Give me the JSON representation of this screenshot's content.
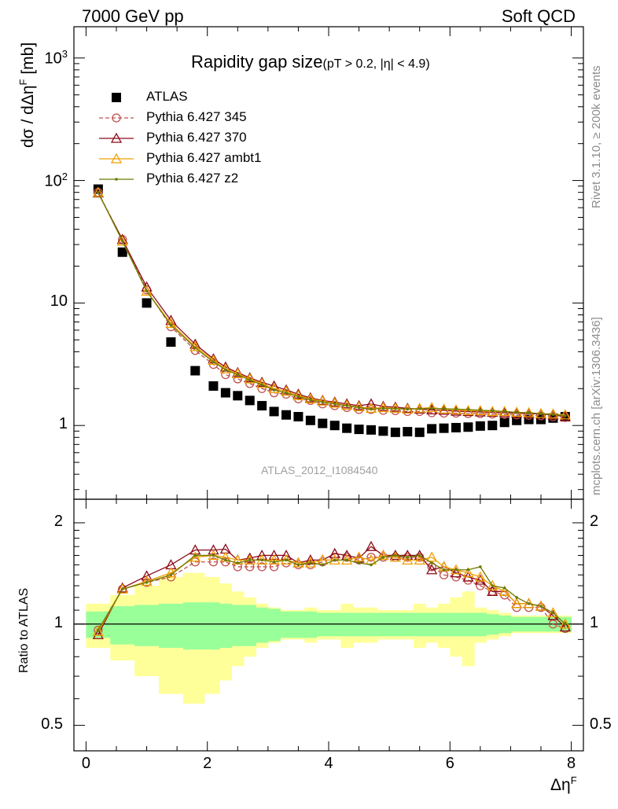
{
  "header": {
    "left": "7000 GeV pp",
    "right": "Soft QCD"
  },
  "side": {
    "rivet": "Rivet 3.1.10, ≥ 200k events",
    "mcplots": "mcplots.cern.ch [arXiv:1306.3436]"
  },
  "main": {
    "title": "Rapidity gap size",
    "title_sub": "(pT > 0.2, |η| < 4.9)",
    "ylabel": "dσ / dΔη",
    "ylabel_sup": "F",
    "ylabel_unit": " [mb]",
    "watermark": "ATLAS_2012_I1084540",
    "yticks": [
      {
        "value": 1000,
        "base": "10",
        "exp": "3"
      },
      {
        "value": 100,
        "base": "10",
        "exp": "2"
      },
      {
        "value": 10,
        "base": "10",
        "exp": ""
      },
      {
        "value": 1,
        "base": "1",
        "exp": ""
      }
    ]
  },
  "ratio": {
    "ylabel": "Ratio to ATLAS",
    "yticks": [
      {
        "value": 2,
        "label": "2"
      },
      {
        "value": 1,
        "label": "1"
      },
      {
        "value": 0.5,
        "label": "0.5"
      }
    ]
  },
  "xaxis": {
    "label": "Δη",
    "label_sup": "F",
    "ticks": [
      {
        "value": 0,
        "label": "0"
      },
      {
        "value": 2,
        "label": "2"
      },
      {
        "value": 4,
        "label": "4"
      },
      {
        "value": 6,
        "label": "6"
      },
      {
        "value": 8,
        "label": "8"
      }
    ]
  },
  "legend": [
    {
      "label": "ATLAS",
      "color": "#000000",
      "marker": "square",
      "dash": false
    },
    {
      "label": "Pythia 6.427 345",
      "color": "#c0504d",
      "marker": "circle",
      "dash": true
    },
    {
      "label": "Pythia 6.427 370",
      "color": "#8b0a1a",
      "marker": "triangle",
      "dash": false
    },
    {
      "label": "Pythia 6.427 ambt1",
      "color": "#f0a000",
      "marker": "triangle",
      "dash": false
    },
    {
      "label": "Pythia 6.427 z2",
      "color": "#6b7a00",
      "marker": "dot",
      "dash": false
    }
  ],
  "chart_data": {
    "type": "line",
    "x": [
      0.2,
      0.6,
      1.0,
      1.4,
      1.8,
      2.1,
      2.3,
      2.5,
      2.7,
      2.9,
      3.1,
      3.3,
      3.5,
      3.7,
      3.9,
      4.1,
      4.3,
      4.5,
      4.7,
      4.9,
      5.1,
      5.3,
      5.5,
      5.7,
      5.9,
      6.1,
      6.3,
      6.5,
      6.7,
      6.9,
      7.1,
      7.3,
      7.5,
      7.7,
      7.9
    ],
    "xlim": [
      -0.2,
      8.2
    ],
    "ylim_main": [
      0.25,
      1800
    ],
    "yscale_main": "log",
    "ylim_ratio": [
      0.42,
      2.35
    ],
    "yscale_ratio": "log",
    "series": [
      {
        "name": "ATLAS",
        "values": [
          85,
          26,
          10,
          4.8,
          2.8,
          2.1,
          1.85,
          1.75,
          1.6,
          1.45,
          1.3,
          1.22,
          1.18,
          1.1,
          1.04,
          1.0,
          0.95,
          0.93,
          0.92,
          0.9,
          0.88,
          0.89,
          0.88,
          0.94,
          0.95,
          0.96,
          0.97,
          0.99,
          1.0,
          1.06,
          1.1,
          1.12,
          1.12,
          1.15,
          1.18
        ]
      },
      {
        "name": "Pythia 6.427 345",
        "values": [
          80,
          33,
          12.8,
          6.4,
          4.1,
          3.15,
          2.6,
          2.4,
          2.2,
          2.0,
          1.85,
          1.8,
          1.65,
          1.6,
          1.5,
          1.45,
          1.4,
          1.35,
          1.35,
          1.33,
          1.32,
          1.3,
          1.3,
          1.27,
          1.26,
          1.26,
          1.25,
          1.25,
          1.24,
          1.23,
          1.22,
          1.21,
          1.2,
          1.18,
          1.16
        ]
      },
      {
        "name": "Pythia 6.427 370",
        "values": [
          79,
          33,
          13.5,
          7.2,
          4.6,
          3.5,
          3.0,
          2.7,
          2.45,
          2.25,
          2.1,
          1.95,
          1.8,
          1.68,
          1.6,
          1.55,
          1.5,
          1.45,
          1.5,
          1.43,
          1.41,
          1.38,
          1.36,
          1.34,
          1.33,
          1.31,
          1.3,
          1.29,
          1.28,
          1.27,
          1.26,
          1.25,
          1.24,
          1.22,
          1.18
        ]
      },
      {
        "name": "Pythia 6.427 ambt1",
        "values": [
          80,
          32,
          12.5,
          6.8,
          4.4,
          3.4,
          2.9,
          2.65,
          2.4,
          2.2,
          2.0,
          1.9,
          1.75,
          1.65,
          1.58,
          1.52,
          1.46,
          1.42,
          1.38,
          1.4,
          1.38,
          1.36,
          1.38,
          1.4,
          1.36,
          1.34,
          1.32,
          1.32,
          1.3,
          1.3,
          1.28,
          1.27,
          1.25,
          1.24,
          1.22
        ]
      },
      {
        "name": "Pythia 6.427 z2",
        "values": [
          80,
          32,
          12.5,
          6.6,
          4.3,
          3.3,
          2.85,
          2.6,
          2.35,
          2.15,
          1.95,
          1.85,
          1.72,
          1.62,
          1.55,
          1.5,
          1.45,
          1.4,
          1.36,
          1.38,
          1.37,
          1.36,
          1.37,
          1.38,
          1.37,
          1.36,
          1.35,
          1.33,
          1.32,
          1.3,
          1.28,
          1.27,
          1.25,
          1.23,
          1.2
        ]
      }
    ],
    "ratio_series": [
      {
        "name": "Pythia 6.427 345",
        "values": [
          0.96,
          1.27,
          1.33,
          1.38,
          1.53,
          1.53,
          1.53,
          1.48,
          1.48,
          1.48,
          1.48,
          1.52,
          1.5,
          1.5,
          1.53,
          1.58,
          1.58,
          1.55,
          1.58,
          1.58,
          1.58,
          1.58,
          1.58,
          1.48,
          1.4,
          1.38,
          1.35,
          1.3,
          1.25,
          1.22,
          1.12,
          1.12,
          1.12,
          1.0,
          0.97
        ]
      },
      {
        "name": "Pythia 6.427 370",
        "values": [
          0.93,
          1.28,
          1.39,
          1.5,
          1.66,
          1.66,
          1.67,
          1.55,
          1.57,
          1.6,
          1.6,
          1.6,
          1.52,
          1.55,
          1.55,
          1.62,
          1.6,
          1.57,
          1.7,
          1.6,
          1.6,
          1.6,
          1.6,
          1.45,
          1.48,
          1.42,
          1.38,
          1.35,
          1.25,
          1.25,
          1.15,
          1.15,
          1.13,
          1.06,
          0.98
        ]
      },
      {
        "name": "Pythia 6.427 ambt1",
        "values": [
          0.95,
          1.27,
          1.34,
          1.42,
          1.58,
          1.6,
          1.58,
          1.55,
          1.55,
          1.55,
          1.55,
          1.55,
          1.52,
          1.52,
          1.55,
          1.55,
          1.55,
          1.58,
          1.55,
          1.6,
          1.58,
          1.55,
          1.55,
          1.58,
          1.48,
          1.45,
          1.42,
          1.38,
          1.3,
          1.25,
          1.15,
          1.15,
          1.13,
          1.08,
          1.0
        ]
      },
      {
        "name": "Pythia 6.427 z2",
        "values": [
          0.96,
          1.27,
          1.33,
          1.4,
          1.6,
          1.6,
          1.55,
          1.52,
          1.55,
          1.55,
          1.53,
          1.55,
          1.5,
          1.52,
          1.5,
          1.55,
          1.55,
          1.52,
          1.5,
          1.58,
          1.6,
          1.58,
          1.6,
          1.52,
          1.45,
          1.45,
          1.45,
          1.48,
          1.3,
          1.28,
          1.2,
          1.15,
          1.13,
          1.08,
          1.0
        ]
      }
    ],
    "uncertainty_bands": {
      "inner_color": "#99ff99",
      "outer_color": "#ffff99",
      "inner_half_width": [
        0.09,
        0.13,
        0.14,
        0.15,
        0.16,
        0.16,
        0.15,
        0.14,
        0.14,
        0.12,
        0.11,
        0.09,
        0.09,
        0.09,
        0.08,
        0.08,
        0.08,
        0.08,
        0.08,
        0.08,
        0.08,
        0.08,
        0.08,
        0.08,
        0.08,
        0.08,
        0.08,
        0.08,
        0.07,
        0.06,
        0.05,
        0.05,
        0.05,
        0.05,
        0.05
      ],
      "outer_half_width": [
        0.15,
        0.22,
        0.3,
        0.38,
        0.42,
        0.38,
        0.32,
        0.25,
        0.2,
        0.15,
        0.12,
        0.1,
        0.1,
        0.12,
        0.1,
        0.1,
        0.15,
        0.12,
        0.12,
        0.1,
        0.1,
        0.1,
        0.15,
        0.12,
        0.15,
        0.2,
        0.25,
        0.12,
        0.1,
        0.08,
        0.06,
        0.06,
        0.06,
        0.06,
        0.06
      ]
    }
  }
}
